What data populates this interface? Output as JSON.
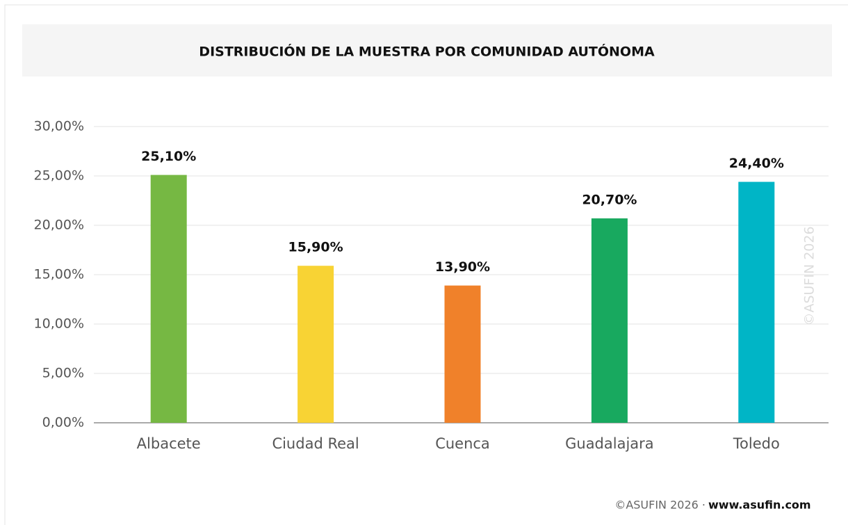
{
  "chart_data": {
    "type": "bar",
    "title": "DISTRIBUCIÓN DE LA MUESTRA POR COMUNIDAD AUTÓNOMA",
    "categories": [
      "Albacete",
      "Ciudad Real",
      "Cuenca",
      "Guadalajara",
      "Toledo"
    ],
    "values": [
      25.1,
      15.9,
      13.9,
      20.7,
      24.4
    ],
    "value_labels": [
      "25,10%",
      "15,90%",
      "13,90%",
      "20,70%",
      "24,40%"
    ],
    "colors": [
      "#76b843",
      "#f8d334",
      "#f0812a",
      "#18a95f",
      "#00b5c6"
    ],
    "ylim": [
      0,
      30
    ],
    "yticks": [
      {
        "value": 0,
        "label": "0,00%"
      },
      {
        "value": 5,
        "label": "5,00%"
      },
      {
        "value": 10,
        "label": "10,00%"
      },
      {
        "value": 15,
        "label": "15,00%"
      },
      {
        "value": 20,
        "label": "20,00%"
      },
      {
        "value": 25,
        "label": "25,00%"
      },
      {
        "value": 30,
        "label": "30,00%"
      }
    ],
    "grid": true,
    "watermark": "©ASUFIN 2026",
    "footer": {
      "credit": "©ASUFIN 2026 ·",
      "url": "www.asufin.com"
    }
  }
}
